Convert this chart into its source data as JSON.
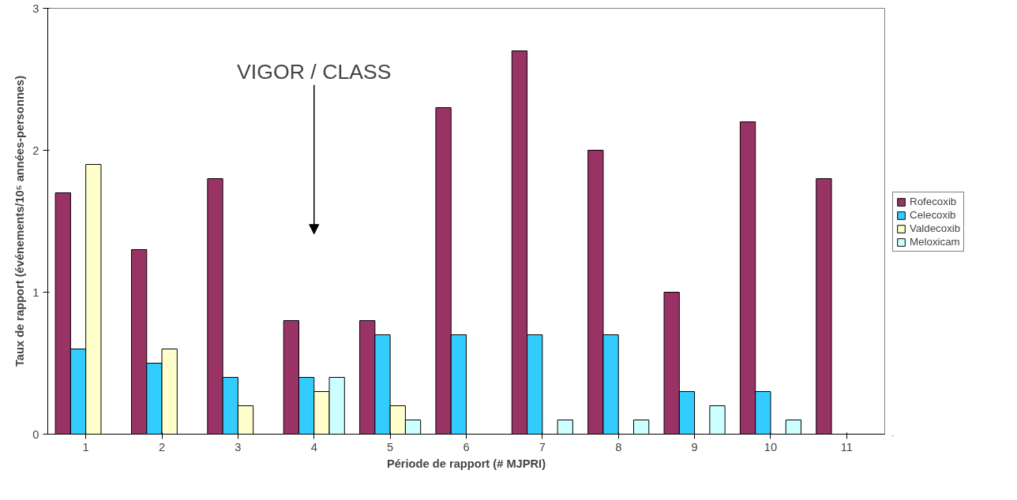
{
  "chart_data": {
    "type": "bar",
    "xlabel": "Période de rapport (# MJPRI)",
    "ylabel": "Taux de rapport (événements/10⁵ années-personnes)",
    "categories": [
      "1",
      "2",
      "3",
      "4",
      "5",
      "6",
      "7",
      "8",
      "9",
      "10",
      "11"
    ],
    "series": [
      {
        "name": "Rofecoxib",
        "color": "#993366",
        "values": [
          1.7,
          1.3,
          1.8,
          0.8,
          0.8,
          2.3,
          2.7,
          2.0,
          1.0,
          2.2,
          1.8
        ]
      },
      {
        "name": "Celecoxib",
        "color": "#33ccff",
        "values": [
          0.6,
          0.5,
          0.4,
          0.4,
          0.7,
          0.7,
          0.7,
          0.7,
          0.3,
          0.3,
          null
        ]
      },
      {
        "name": "Valdecoxib",
        "color": "#ffffcc",
        "values": [
          1.9,
          0.6,
          0.2,
          0.3,
          0.2,
          null,
          null,
          null,
          null,
          null,
          null
        ]
      },
      {
        "name": "Meloxicam",
        "color": "#ccffff",
        "values": [
          null,
          null,
          null,
          0.4,
          0.1,
          null,
          0.1,
          0.1,
          0.2,
          0.1,
          null
        ]
      }
    ],
    "ylim": [
      0,
      3
    ],
    "yticks": [
      0,
      1,
      2,
      3
    ],
    "grid": false,
    "legend": "right",
    "annotations": [
      "VIGOR / CLASS"
    ]
  }
}
